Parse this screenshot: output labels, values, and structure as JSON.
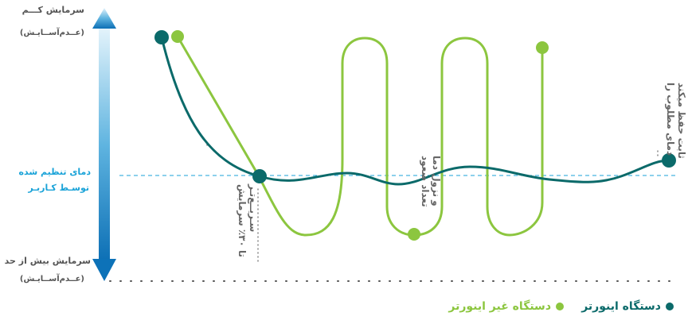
{
  "labels": {
    "low_power_line1": "سرمایش کـــم",
    "low_power_line2": "(عــدم‌آســایـش)",
    "setpoint_line1": "دمای تنظیم شده",
    "setpoint_line2": "توسـط کـاربـر",
    "high_power_line1": "سرمایش بیش از حد",
    "high_power_line2": "(عــدم‌آســایـش)"
  },
  "annotations": {
    "fast_cooling_line1": "تا ۳۰٪ سرمایش",
    "fast_cooling_line2": "سـریــع‌تـر",
    "fluctuation_line1": "تعداد صعود",
    "fluctuation_line2": "و نزول دما",
    "constant_line1": "دمای مطلوب را",
    "constant_line2": "ثابت حفظ میکند"
  },
  "legend": {
    "inverter": "دستگاه اینورتر",
    "non_inverter": "دستگاه غیر اینورتر"
  },
  "colors": {
    "inverter": "#0b6a6a",
    "non_inverter": "#8cc63f",
    "setpoint": "#1aa3d8",
    "arrow_top": "#d9eef9",
    "arrow_bottom": "#0d72b8"
  }
}
